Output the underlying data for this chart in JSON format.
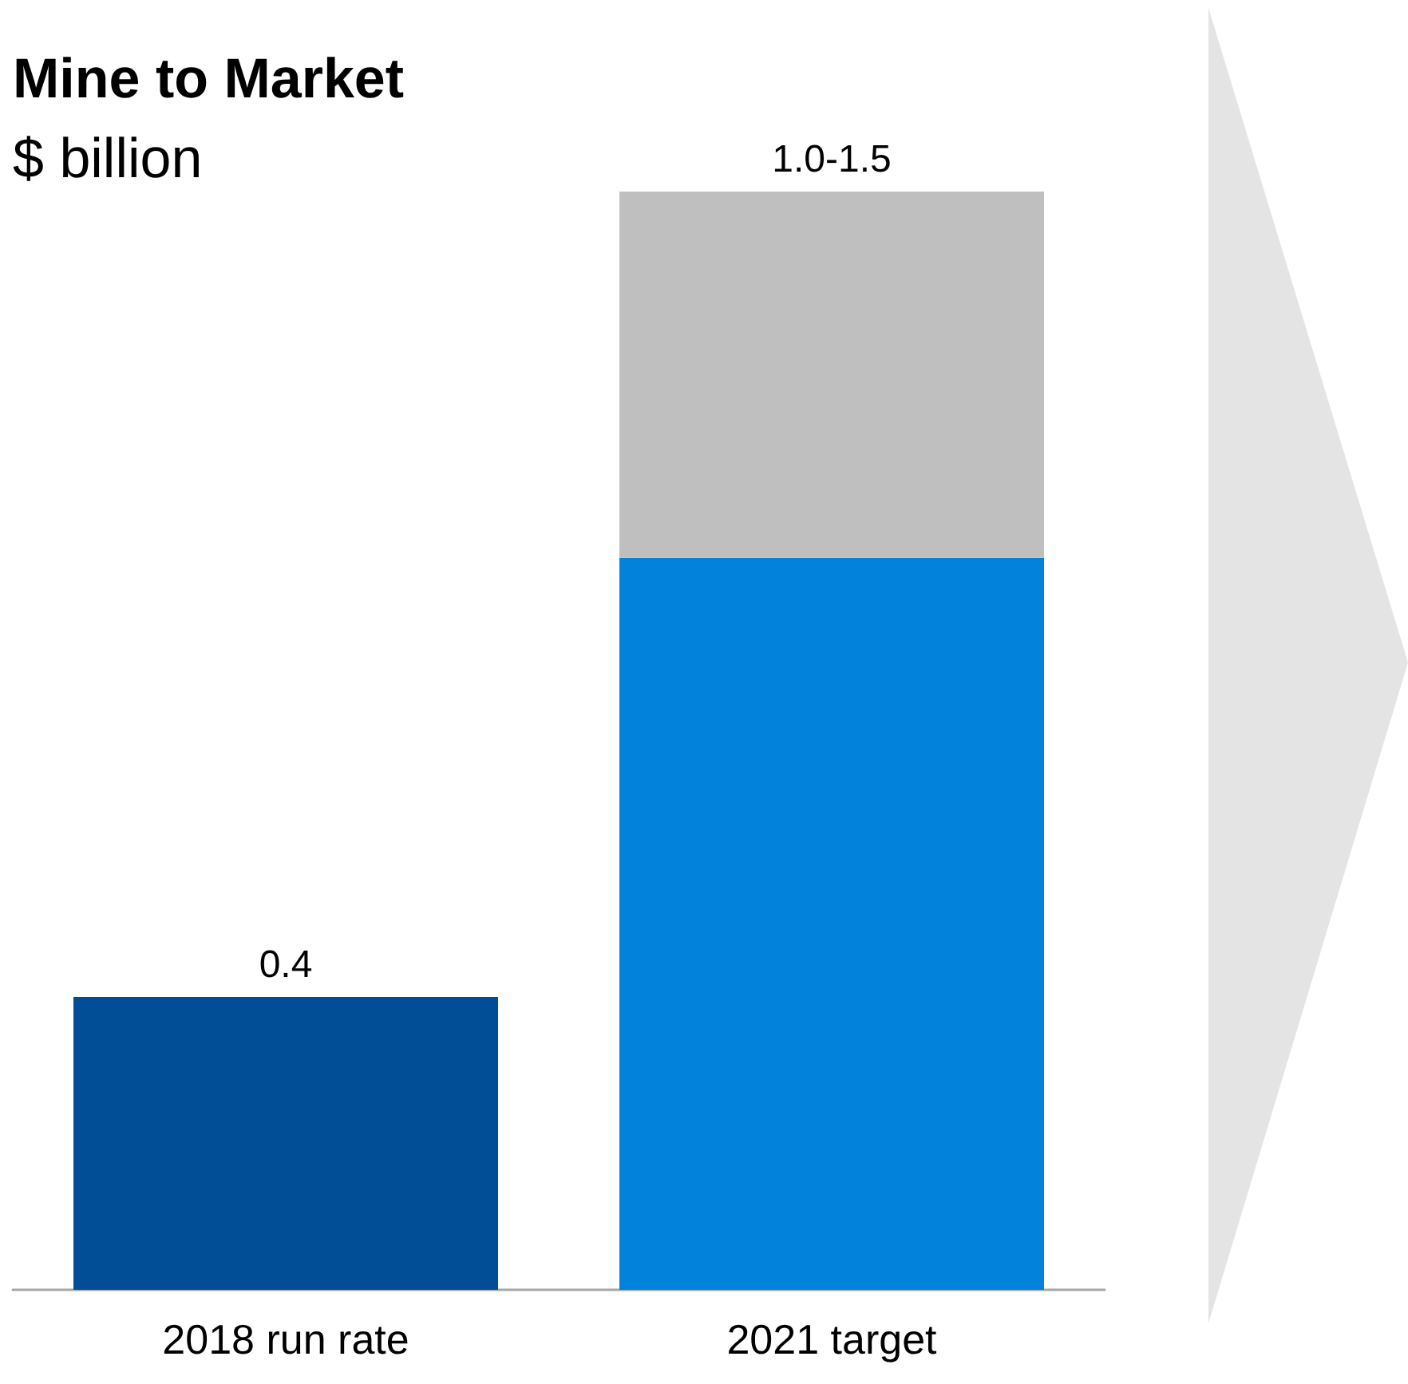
{
  "chart_data": {
    "type": "bar",
    "title": "Mine to Market",
    "subtitle": "$ billion",
    "categories": [
      "2018 run rate",
      "2021 target"
    ],
    "stacked": true,
    "grid": false,
    "series": [
      {
        "colors": [
          "#024e96",
          "#0382db"
        ],
        "values": [
          0.4,
          1.0
        ],
        "value_labels": [
          "0.4",
          null
        ]
      },
      {
        "color": "#bfbfbf",
        "values": [
          null,
          0.5
        ],
        "value_labels": [
          null,
          "1.0-1.5"
        ]
      }
    ]
  }
}
